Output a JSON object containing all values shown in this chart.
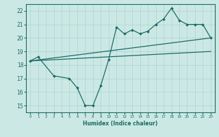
{
  "bg_color": "#cce8e5",
  "grid_color": "#aad4d0",
  "line_color": "#1a6b65",
  "xlabel": "Humidex (Indice chaleur)",
  "xlim": [
    -0.5,
    23.5
  ],
  "ylim": [
    14.5,
    22.5
  ],
  "yticks": [
    15,
    16,
    17,
    18,
    19,
    20,
    21,
    22
  ],
  "xticks": [
    0,
    1,
    2,
    3,
    4,
    5,
    6,
    7,
    8,
    9,
    10,
    11,
    12,
    13,
    14,
    15,
    16,
    17,
    18,
    19,
    20,
    21,
    22,
    23
  ],
  "line1_x": [
    0,
    23
  ],
  "line1_y": [
    18.3,
    20.0
  ],
  "line2_x": [
    0,
    23
  ],
  "line2_y": [
    18.3,
    19.0
  ],
  "line3_x": [
    0,
    1,
    3,
    5,
    6,
    7,
    8,
    9,
    10,
    11,
    12,
    13,
    14,
    15,
    16,
    17,
    18,
    19,
    20,
    21,
    22,
    23
  ],
  "line3_y": [
    18.3,
    18.6,
    17.2,
    17.0,
    16.3,
    15.0,
    15.0,
    16.5,
    18.4,
    20.8,
    20.3,
    20.6,
    20.3,
    20.5,
    21.0,
    21.4,
    22.2,
    21.3,
    21.0,
    21.0,
    21.0,
    20.0
  ]
}
